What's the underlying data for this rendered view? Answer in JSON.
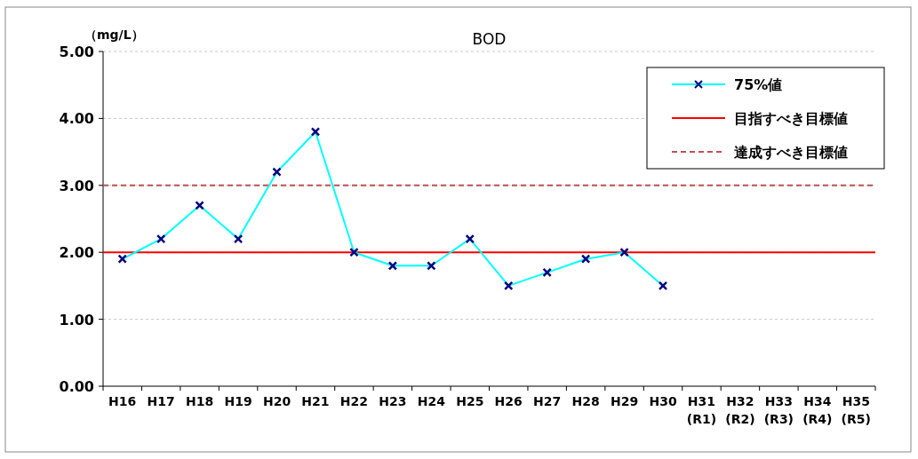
{
  "chart_data": {
    "type": "line",
    "title": "BOD",
    "ylabel": "（mg/L）",
    "categories": [
      "H16",
      "H17",
      "H18",
      "H19",
      "H20",
      "H21",
      "H22",
      "H23",
      "H24",
      "H25",
      "H26",
      "H27",
      "H28",
      "H29",
      "H30",
      "H31\n(R1)",
      "H32\n(R2)",
      "H33\n(R3)",
      "H34\n(R4)",
      "H35\n(R5)"
    ],
    "series": [
      {
        "name": "75%値",
        "color": "#00ffff",
        "values": [
          1.9,
          2.2,
          2.7,
          2.2,
          3.2,
          3.8,
          2.0,
          1.8,
          1.8,
          2.2,
          1.5,
          1.7,
          1.9,
          2.0,
          1.5,
          null,
          null,
          null,
          null,
          null
        ]
      }
    ],
    "ref_lines": [
      {
        "axis": "y",
        "value": 2,
        "label": "目指すべき目標値",
        "color": "#ff0000",
        "line_style": "solid"
      },
      {
        "axis": "y",
        "value": 3,
        "label": "達成すべき目標値",
        "color": "#c0504d",
        "line_style": "dashed"
      }
    ],
    "ylim": [
      0,
      5
    ],
    "yticks": [
      {
        "value": 0,
        "label": "0.00"
      },
      {
        "value": 1,
        "label": "1.00"
      },
      {
        "value": 2,
        "label": "2.00"
      },
      {
        "value": 3,
        "label": "3.00"
      },
      {
        "value": 4,
        "label": "4.00"
      },
      {
        "value": 5,
        "label": "5.00"
      }
    ],
    "grid": "y",
    "legend": "top right",
    "marker": "cross",
    "line_style": "solid"
  }
}
